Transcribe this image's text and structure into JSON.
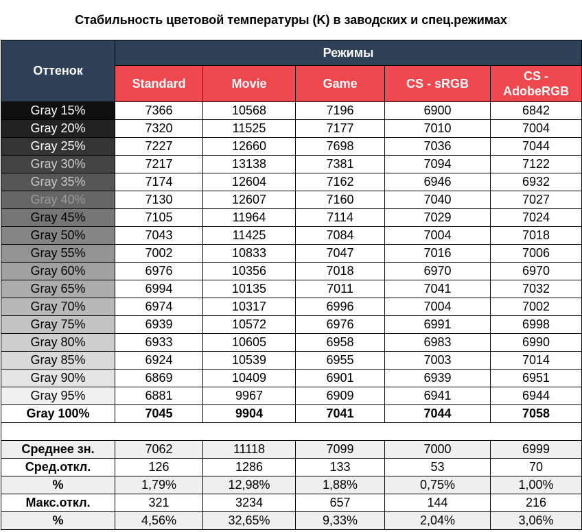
{
  "title": "Стабильность цветовой температуры (K) в заводских и спец.режимах",
  "header": {
    "shade_label": "Оттенок",
    "modes_label": "Режимы",
    "modes": [
      "Standard",
      "Movie",
      "Game",
      "CS - sRGB",
      "CS - AdobeRGB"
    ]
  },
  "rows": [
    {
      "label": "Gray 15%",
      "bg": "#101010",
      "fg": "#ffffff",
      "values": [
        "7366",
        "10568",
        "7196",
        "6900",
        "6842"
      ]
    },
    {
      "label": "Gray 20%",
      "bg": "#222222",
      "fg": "#ffffff",
      "values": [
        "7320",
        "11525",
        "7177",
        "7010",
        "7004"
      ]
    },
    {
      "label": "Gray 25%",
      "bg": "#353535",
      "fg": "#ffffff",
      "values": [
        "7227",
        "12660",
        "7698",
        "7036",
        "7044"
      ]
    },
    {
      "label": "Gray 30%",
      "bg": "#444444",
      "fg": "#cfcfcf",
      "values": [
        "7217",
        "13138",
        "7381",
        "7094",
        "7122"
      ]
    },
    {
      "label": "Gray 35%",
      "bg": "#565656",
      "fg": "#c8c8c8",
      "values": [
        "7174",
        "12604",
        "7162",
        "6946",
        "6932"
      ]
    },
    {
      "label": "Gray 40%",
      "bg": "#666666",
      "fg": "#9a9a9a",
      "values": [
        "7130",
        "12607",
        "7160",
        "7040",
        "7027"
      ]
    },
    {
      "label": "Gray 45%",
      "bg": "#767676",
      "fg": "#000000",
      "values": [
        "7105",
        "11964",
        "7114",
        "7029",
        "7024"
      ]
    },
    {
      "label": "Gray 50%",
      "bg": "#858585",
      "fg": "#000000",
      "values": [
        "7043",
        "11425",
        "7084",
        "7004",
        "7018"
      ]
    },
    {
      "label": "Gray 55%",
      "bg": "#939393",
      "fg": "#000000",
      "values": [
        "7002",
        "10833",
        "7047",
        "7016",
        "7006"
      ]
    },
    {
      "label": "Gray 60%",
      "bg": "#a1a1a1",
      "fg": "#000000",
      "values": [
        "6976",
        "10356",
        "7018",
        "6970",
        "6970"
      ]
    },
    {
      "label": "Gray 65%",
      "bg": "#acacac",
      "fg": "#000000",
      "values": [
        "6994",
        "10135",
        "7011",
        "7041",
        "7032"
      ]
    },
    {
      "label": "Gray 70%",
      "bg": "#b8b8b8",
      "fg": "#000000",
      "values": [
        "6974",
        "10317",
        "6996",
        "7004",
        "7002"
      ]
    },
    {
      "label": "Gray 75%",
      "bg": "#c3c3c3",
      "fg": "#000000",
      "values": [
        "6939",
        "10572",
        "6976",
        "6991",
        "6998"
      ]
    },
    {
      "label": "Gray 80%",
      "bg": "#cecece",
      "fg": "#000000",
      "values": [
        "6933",
        "10605",
        "6958",
        "6983",
        "6990"
      ]
    },
    {
      "label": "Gray 85%",
      "bg": "#d9d9d9",
      "fg": "#000000",
      "values": [
        "6924",
        "10539",
        "6955",
        "7003",
        "7014"
      ]
    },
    {
      "label": "Gray 90%",
      "bg": "#e4e4e4",
      "fg": "#000000",
      "values": [
        "6869",
        "10409",
        "6901",
        "6939",
        "6951"
      ]
    },
    {
      "label": "Gray 95%",
      "bg": "#f0f0f0",
      "fg": "#000000",
      "values": [
        "6881",
        "9967",
        "6909",
        "6941",
        "6944"
      ]
    },
    {
      "label": "Gray 100%",
      "bg": "#ffffff",
      "fg": "#000000",
      "bold": true,
      "values": [
        "7045",
        "9904",
        "7041",
        "7044",
        "7058"
      ]
    }
  ],
  "stats": [
    {
      "label": "Среднее зн.",
      "alt": true,
      "values": [
        "7062",
        "11118",
        "7099",
        "7000",
        "6999"
      ]
    },
    {
      "label": "Сред.откл.",
      "alt": false,
      "values": [
        "126",
        "1286",
        "133",
        "53",
        "70"
      ]
    },
    {
      "label": "%",
      "alt": true,
      "values": [
        "1,79%",
        "12,98%",
        "1,88%",
        "0,75%",
        "1,00%"
      ]
    },
    {
      "label": "Макс.откл.",
      "alt": false,
      "values": [
        "321",
        "3234",
        "657",
        "144",
        "216"
      ]
    },
    {
      "label": "%",
      "alt": true,
      "values": [
        "4,56%",
        "32,65%",
        "9,33%",
        "2,04%",
        "3,06%"
      ]
    }
  ],
  "colors": {
    "header_dark": "#2e4156",
    "header_red": "#f0484f",
    "alt_row": "#efefef"
  },
  "chart_data": {
    "type": "table",
    "title": "Стабильность цветовой температуры (K) в заводских и спец.режимах",
    "columns": [
      "Оттенок",
      "Standard",
      "Movie",
      "Game",
      "CS - sRGB",
      "CS - AdobeRGB"
    ]
  }
}
